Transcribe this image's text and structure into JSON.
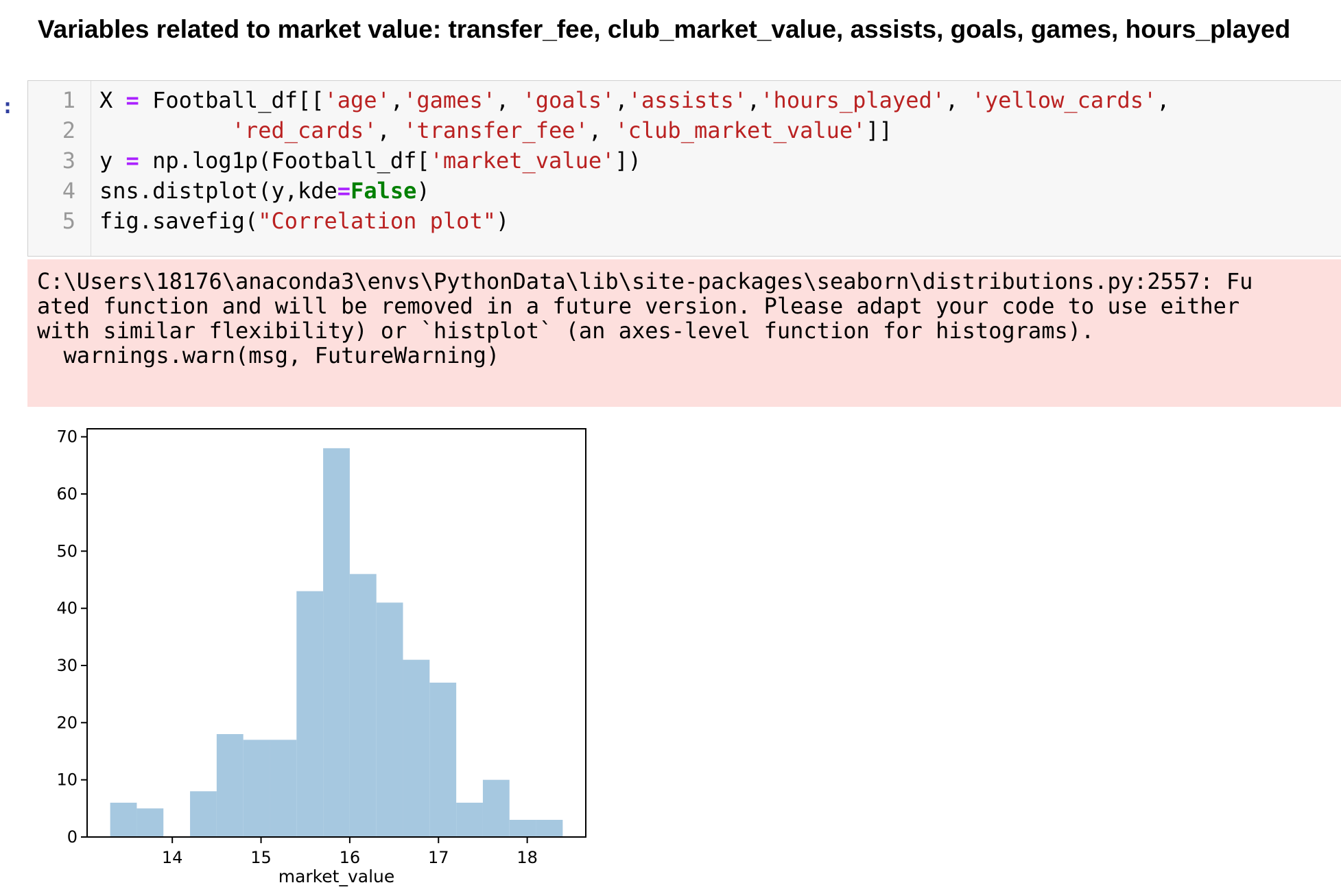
{
  "heading": "Variables related to market value: transfer_fee, club_market_value, assists, goals, games, hours_played",
  "prompt": ":",
  "code": {
    "line_numbers": [
      "1",
      "2",
      "3",
      "4",
      "5"
    ],
    "lines": [
      [
        {
          "t": "X ",
          "c": ""
        },
        {
          "t": "=",
          "c": "op"
        },
        {
          "t": " Football_df[[",
          "c": ""
        },
        {
          "t": "'age'",
          "c": "str"
        },
        {
          "t": ",",
          "c": ""
        },
        {
          "t": "'games'",
          "c": "str"
        },
        {
          "t": ", ",
          "c": ""
        },
        {
          "t": "'goals'",
          "c": "str"
        },
        {
          "t": ",",
          "c": ""
        },
        {
          "t": "'assists'",
          "c": "str"
        },
        {
          "t": ",",
          "c": ""
        },
        {
          "t": "'hours_played'",
          "c": "str"
        },
        {
          "t": ", ",
          "c": ""
        },
        {
          "t": "'yellow_cards'",
          "c": "str"
        },
        {
          "t": ",",
          "c": ""
        }
      ],
      [
        {
          "t": "          ",
          "c": ""
        },
        {
          "t": "'red_cards'",
          "c": "str"
        },
        {
          "t": ", ",
          "c": ""
        },
        {
          "t": "'transfer_fee'",
          "c": "str"
        },
        {
          "t": ", ",
          "c": ""
        },
        {
          "t": "'club_market_value'",
          "c": "str"
        },
        {
          "t": "]]",
          "c": ""
        }
      ],
      [
        {
          "t": "y ",
          "c": ""
        },
        {
          "t": "=",
          "c": "op"
        },
        {
          "t": " np.log1p(Football_df[",
          "c": ""
        },
        {
          "t": "'market_value'",
          "c": "str"
        },
        {
          "t": "])",
          "c": ""
        }
      ],
      [
        {
          "t": "sns.distplot(y,kde",
          "c": ""
        },
        {
          "t": "=",
          "c": "op"
        },
        {
          "t": "False",
          "c": "kw"
        },
        {
          "t": ")",
          "c": ""
        }
      ],
      [
        {
          "t": "fig.savefig(",
          "c": ""
        },
        {
          "t": "\"Correlation plot\"",
          "c": "str"
        },
        {
          "t": ")",
          "c": ""
        }
      ]
    ]
  },
  "stderr": {
    "lines": [
      "C:\\Users\\18176\\anaconda3\\envs\\PythonData\\lib\\site-packages\\seaborn\\distributions.py:2557: Fu",
      "ated function and will be removed in a future version. Please adapt your code to use either",
      "with similar flexibility) or `histplot` (an axes-level function for histograms).",
      "  warnings.warn(msg, FutureWarning)"
    ]
  },
  "colors": {
    "bar_fill": "#a6c8e0",
    "stderr_background": "#fddfdd",
    "string_literal": "#ba2121",
    "operator": "#aa22ff",
    "keyword": "#008000"
  },
  "chart_data": {
    "type": "bar",
    "histogram": true,
    "bin_edges": [
      13.3,
      13.6,
      13.9,
      14.2,
      14.5,
      14.8,
      15.1,
      15.4,
      15.7,
      16.0,
      16.3,
      16.6,
      16.9,
      17.2,
      17.5,
      17.8,
      18.1,
      18.4
    ],
    "values": [
      6,
      5,
      0,
      8,
      18,
      17,
      17,
      43,
      68,
      46,
      41,
      31,
      27,
      6,
      10,
      3,
      3
    ],
    "xlabel": "market_value",
    "ylabel": "",
    "title": "",
    "xticks": [
      14,
      15,
      16,
      17,
      18
    ],
    "yticks": [
      0,
      10,
      20,
      30,
      40,
      50,
      60,
      70
    ],
    "xlim": [
      13.04,
      18.66
    ],
    "ylim": [
      0,
      71.4
    ],
    "grid": false
  }
}
